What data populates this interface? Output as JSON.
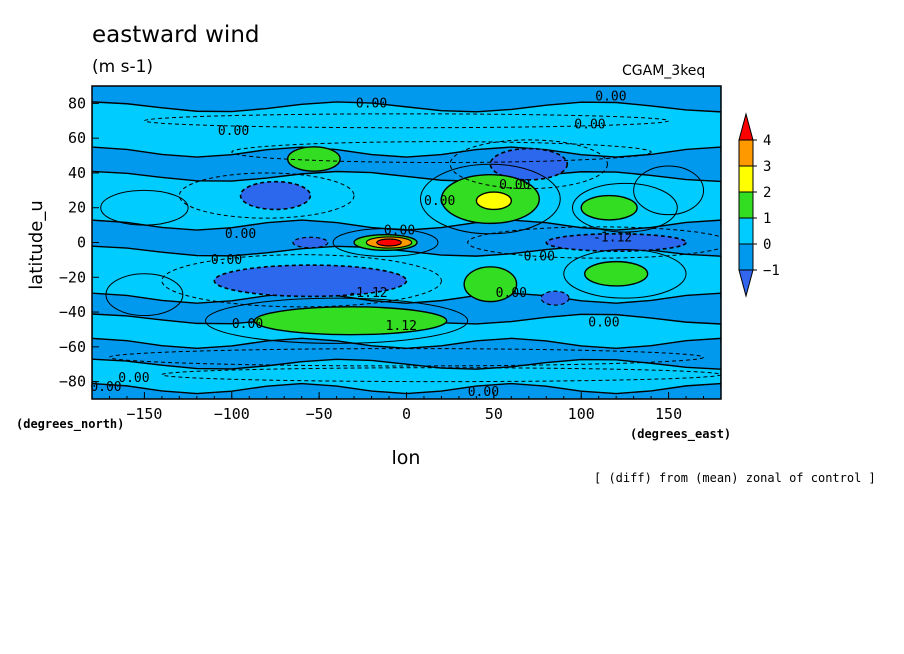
{
  "chart_data": {
    "type": "heatmap",
    "title": "eastward wind",
    "units": "(m s-1)",
    "dataset": "CGAM_3keq",
    "xlabel": "lon",
    "ylabel": "latitude_u",
    "x_units": "(degrees_east)",
    "y_units": "(degrees_north)",
    "note": "[ (diff) from (mean) zonal of control ]",
    "xlim": [
      -180,
      180
    ],
    "ylim": [
      -90,
      90
    ],
    "x_ticks": [
      -150,
      -100,
      -50,
      0,
      50,
      100,
      150
    ],
    "y_ticks": [
      -80,
      -60,
      -40,
      -20,
      0,
      20,
      40,
      60,
      80
    ],
    "contour_labels": [
      {
        "text": "0.00",
        "lon": -20,
        "lat": 80
      },
      {
        "text": "0.00",
        "lon": 117,
        "lat": 84
      },
      {
        "text": "0.00",
        "lon": 105,
        "lat": 68
      },
      {
        "text": "0.00",
        "lon": -99,
        "lat": 64
      },
      {
        "text": "0.00",
        "lon": 62,
        "lat": 33
      },
      {
        "text": "0.00",
        "lon": 19,
        "lat": 24
      },
      {
        "text": "0.00",
        "lon": -4,
        "lat": 7
      },
      {
        "text": "0.00",
        "lon": -95,
        "lat": 5
      },
      {
        "text": "0.00",
        "lon": -103,
        "lat": -10
      },
      {
        "text": "0.00",
        "lon": 76,
        "lat": -8
      },
      {
        "text": "0.00",
        "lon": 60,
        "lat": -29
      },
      {
        "text": "0.00",
        "lon": -91,
        "lat": -47
      },
      {
        "text": "0.00",
        "lon": 113,
        "lat": -46
      },
      {
        "text": "0.00",
        "lon": -156,
        "lat": -78
      },
      {
        "text": "0.00",
        "lon": -172,
        "lat": -83
      },
      {
        "text": "0.00",
        "lon": 44,
        "lat": -86
      },
      {
        "text": "-1.12",
        "lon": -22,
        "lat": -29
      },
      {
        "text": "1.12",
        "lon": -3,
        "lat": -48
      },
      {
        "text": "-1.12",
        "lon": 118,
        "lat": 3
      }
    ],
    "colorbar": {
      "ticks": [
        "4",
        "3",
        "2",
        "1",
        "0",
        "−1"
      ],
      "colors": [
        "#ff0000",
        "#ff9900",
        "#ffff00",
        "#33dd22",
        "#00ccff",
        "#0099ee",
        "#3366ee"
      ]
    },
    "palette": {
      "strong_neg": "#2b68ee",
      "neg": "#0099ee",
      "zero": "#00ccff",
      "pos1": "#00dddd",
      "pos2": "#33dd22",
      "pos3": "#ffff00",
      "pos4": "#ff9900",
      "max": "#ff0000"
    }
  }
}
